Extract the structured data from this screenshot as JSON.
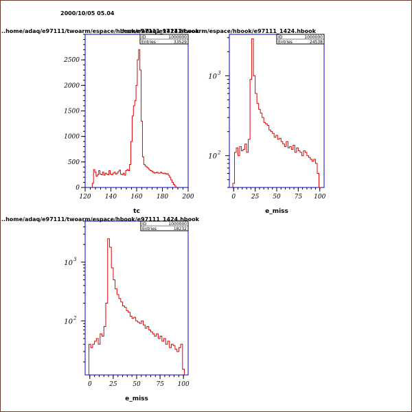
{
  "header": {
    "datetime": "2000/10/05   05.04"
  },
  "colors": {
    "histogram": "#dd0000",
    "axes_frame": "#0000cc",
    "page_border": "#6b3a2a",
    "text": "#000000"
  },
  "chart_data": [
    {
      "type": "histogram",
      "title": "..home/adaq/e97111/twoarm/espace/hbook/e97111_1424.hbook",
      "xlabel": "tc",
      "ylabel": "",
      "xlim": [
        120,
        200
      ],
      "ylim": [
        0,
        3000
      ],
      "log_y": false,
      "x_ticks": [
        120,
        140,
        160,
        180,
        200
      ],
      "y_ticks": [
        0,
        500,
        1000,
        1500,
        2000,
        2500
      ],
      "stats": {
        "id_label": "ID",
        "id_value": "1000000",
        "entries_label": "Entries",
        "entries_value": "33529"
      },
      "series": [
        {
          "x": [
            126,
            127,
            128,
            129,
            130,
            131,
            132,
            133,
            134,
            135,
            136,
            137,
            138,
            139,
            140,
            141,
            142,
            143,
            144,
            145,
            146,
            147,
            148,
            149,
            150,
            151,
            152,
            153,
            154,
            155,
            156,
            157,
            158,
            159,
            160,
            161,
            162,
            163,
            164,
            165,
            166,
            167,
            168,
            169,
            170,
            171,
            172,
            173,
            174,
            175,
            176,
            177,
            178,
            179,
            180,
            181,
            182,
            183,
            184,
            185,
            186,
            187,
            188,
            189,
            190
          ],
          "y": [
            80,
            350,
            300,
            220,
            250,
            330,
            260,
            250,
            300,
            240,
            280,
            260,
            250,
            330,
            260,
            250,
            280,
            300,
            260,
            280,
            310,
            340,
            260,
            250,
            280,
            240,
            330,
            350,
            330,
            450,
            900,
            1400,
            1600,
            1700,
            2000,
            2500,
            2700,
            2300,
            1300,
            600,
            450,
            420,
            400,
            380,
            350,
            330,
            320,
            300,
            280,
            290,
            300,
            280,
            280,
            300,
            280,
            270,
            280,
            260,
            270,
            240,
            200,
            150,
            100,
            60,
            30
          ]
        }
      ]
    },
    {
      "type": "histogram",
      "title": "..home/adaq/e97111/twoarm/espace/hbook/e97111_1424.hbook",
      "xlabel": "e_miss",
      "ylabel": "",
      "xlim": [
        -5,
        105
      ],
      "ylim": [
        40,
        3300
      ],
      "log_y": true,
      "x_ticks": [
        0,
        25,
        50,
        75,
        100
      ],
      "y_tick_labels": [
        {
          "value": 100,
          "label": "10",
          "exp": "2"
        },
        {
          "value": 1000,
          "label": "10",
          "exp": "3"
        }
      ],
      "stats": {
        "id_label": "ID",
        "id_value": "1000000",
        "entries_label": "Entries",
        "entries_value": "24538"
      },
      "series": [
        {
          "x": [
            0,
            2,
            4,
            6,
            8,
            10,
            12,
            14,
            16,
            18,
            20,
            22,
            24,
            26,
            28,
            30,
            32,
            34,
            36,
            38,
            40,
            42,
            44,
            46,
            48,
            50,
            52,
            54,
            56,
            58,
            60,
            62,
            64,
            66,
            68,
            70,
            72,
            74,
            76,
            78,
            80,
            82,
            84,
            86,
            88,
            90,
            92,
            94,
            96,
            98,
            100
          ],
          "y": [
            45,
            110,
            125,
            100,
            130,
            115,
            120,
            140,
            110,
            160,
            900,
            2900,
            1000,
            600,
            450,
            380,
            340,
            300,
            260,
            250,
            240,
            210,
            200,
            190,
            170,
            180,
            160,
            165,
            150,
            140,
            130,
            150,
            125,
            130,
            120,
            135,
            110,
            125,
            115,
            110,
            100,
            115,
            110,
            100,
            95,
            90,
            85,
            90,
            80,
            60,
            40
          ]
        }
      ]
    },
    {
      "type": "histogram",
      "title": "..home/adaq/e97111/twoarm/espace/hbook/e97111_1424.hbook",
      "xlabel": "e_miss",
      "ylabel": "",
      "xlim": [
        -5,
        105
      ],
      "ylim": [
        12,
        5000
      ],
      "log_y": true,
      "x_ticks": [
        0,
        25,
        50,
        75,
        100
      ],
      "y_tick_labels": [
        {
          "value": 100,
          "label": "10",
          "exp": "2"
        },
        {
          "value": 1000,
          "label": "10",
          "exp": "3"
        }
      ],
      "stats": {
        "id_label": "ID",
        "id_value": "1000000",
        "entries_label": "Entries",
        "entries_value": "18232"
      },
      "series": [
        {
          "x": [
            0,
            2,
            4,
            6,
            8,
            10,
            12,
            14,
            16,
            18,
            20,
            22,
            24,
            26,
            28,
            30,
            32,
            34,
            36,
            38,
            40,
            42,
            44,
            46,
            48,
            50,
            52,
            54,
            56,
            58,
            60,
            62,
            64,
            66,
            68,
            70,
            72,
            74,
            76,
            78,
            80,
            82,
            84,
            86,
            88,
            90,
            92,
            94,
            96,
            98,
            100
          ],
          "y": [
            40,
            35,
            40,
            45,
            50,
            40,
            60,
            55,
            80,
            200,
            2500,
            1800,
            800,
            500,
            350,
            280,
            240,
            210,
            180,
            170,
            150,
            140,
            120,
            110,
            115,
            100,
            95,
            90,
            100,
            85,
            75,
            80,
            70,
            65,
            60,
            55,
            60,
            50,
            55,
            45,
            50,
            40,
            45,
            35,
            40,
            38,
            33,
            30,
            35,
            40,
            15
          ]
        }
      ]
    }
  ]
}
